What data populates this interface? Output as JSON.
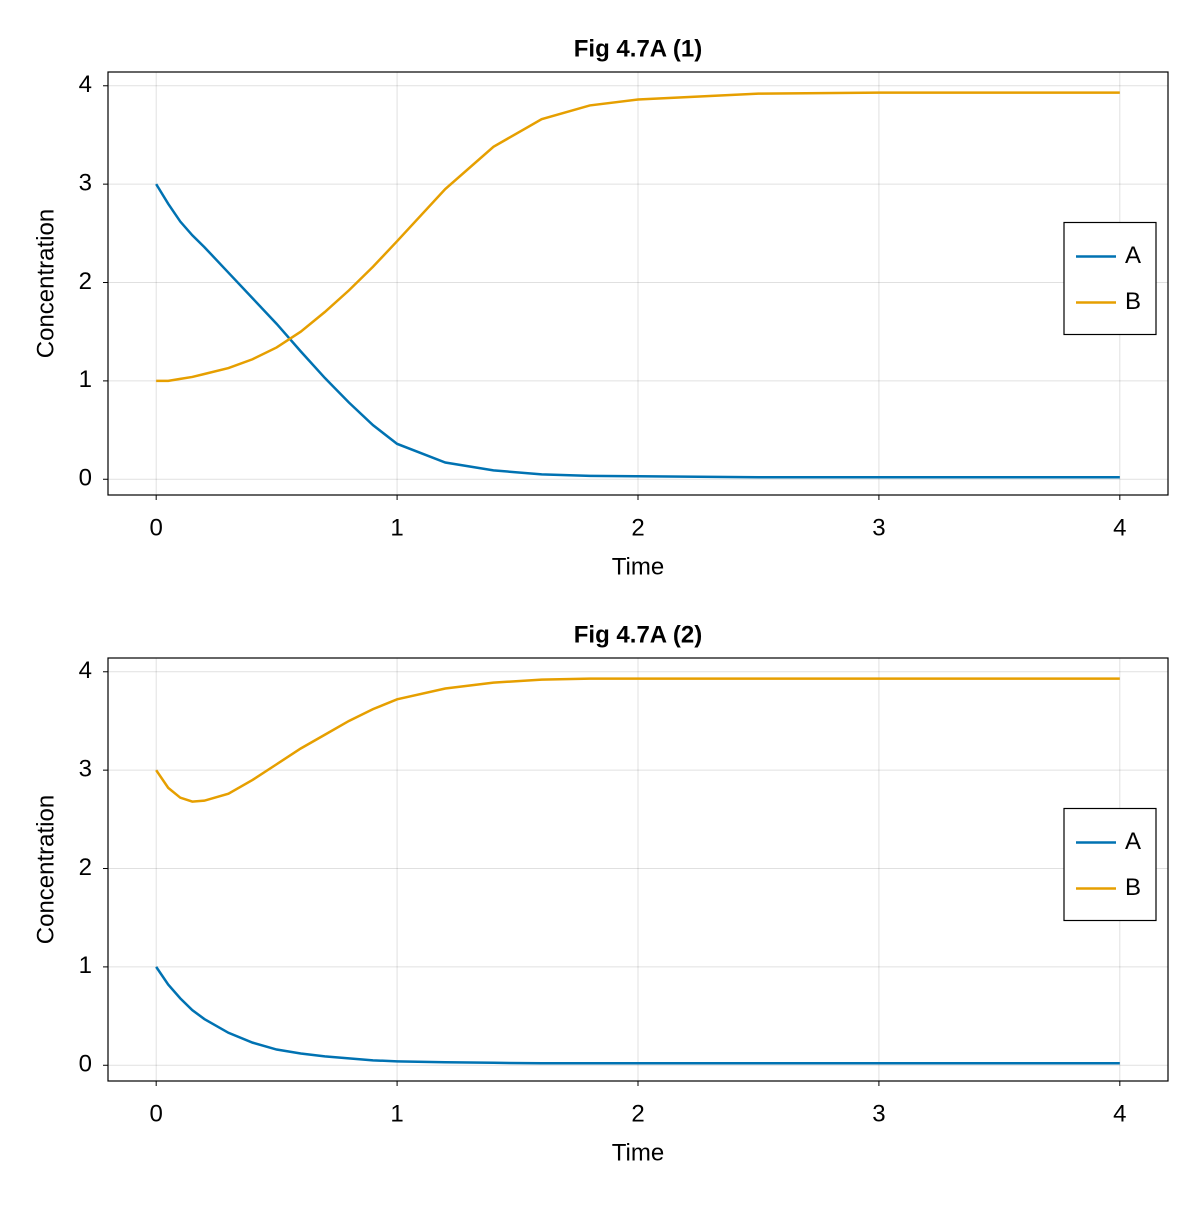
{
  "chart_data": [
    {
      "type": "line",
      "title": "Fig 4.7A (1)",
      "x_label": "Time",
      "y_label": "Concentration",
      "x": [
        0,
        0.05,
        0.1,
        0.15,
        0.2,
        0.3,
        0.4,
        0.5,
        0.6,
        0.7,
        0.8,
        0.9,
        1,
        1.2,
        1.4,
        1.6,
        1.8,
        2,
        2.5,
        3,
        3.5,
        4
      ],
      "series": [
        {
          "name": "A",
          "color": "#0072b2",
          "values": [
            3,
            2.8,
            2.62,
            2.48,
            2.36,
            2.1,
            1.84,
            1.58,
            1.3,
            1.03,
            0.78,
            0.55,
            0.36,
            0.17,
            0.09,
            0.05,
            0.035,
            0.03,
            0.02,
            0.02,
            0.02,
            0.02
          ]
        },
        {
          "name": "B",
          "color": "#e69f00",
          "values": [
            1,
            1.0,
            1.02,
            1.04,
            1.07,
            1.13,
            1.22,
            1.34,
            1.5,
            1.7,
            1.92,
            2.16,
            2.42,
            2.95,
            3.38,
            3.66,
            3.8,
            3.86,
            3.92,
            3.93,
            3.93,
            3.93
          ]
        }
      ],
      "xlim": [
        -0.2,
        4.2
      ],
      "ylim": [
        -0.16,
        4.14
      ],
      "xticks": [
        0,
        1,
        2,
        3,
        4
      ],
      "yticks": [
        0,
        1,
        2,
        3,
        4
      ],
      "grid": true,
      "legend": "right"
    },
    {
      "type": "line",
      "title": "Fig 4.7A (2)",
      "x_label": "Time",
      "y_label": "Concentration",
      "x": [
        0,
        0.05,
        0.1,
        0.15,
        0.2,
        0.3,
        0.4,
        0.5,
        0.6,
        0.7,
        0.8,
        0.9,
        1,
        1.2,
        1.4,
        1.6,
        1.8,
        2,
        2.5,
        3,
        3.5,
        4
      ],
      "series": [
        {
          "name": "A",
          "color": "#0072b2",
          "values": [
            1,
            0.82,
            0.68,
            0.56,
            0.47,
            0.33,
            0.23,
            0.16,
            0.12,
            0.09,
            0.07,
            0.05,
            0.04,
            0.03,
            0.025,
            0.02,
            0.02,
            0.02,
            0.02,
            0.02,
            0.02,
            0.02
          ]
        },
        {
          "name": "B",
          "color": "#e69f00",
          "values": [
            3,
            2.82,
            2.72,
            2.68,
            2.69,
            2.76,
            2.9,
            3.06,
            3.22,
            3.36,
            3.5,
            3.62,
            3.72,
            3.83,
            3.89,
            3.92,
            3.93,
            3.93,
            3.93,
            3.93,
            3.93,
            3.93
          ]
        }
      ],
      "xlim": [
        -0.2,
        4.2
      ],
      "ylim": [
        -0.16,
        4.14
      ],
      "xticks": [
        0,
        1,
        2,
        3,
        4
      ],
      "yticks": [
        0,
        1,
        2,
        3,
        4
      ],
      "grid": true,
      "legend": "right"
    }
  ]
}
